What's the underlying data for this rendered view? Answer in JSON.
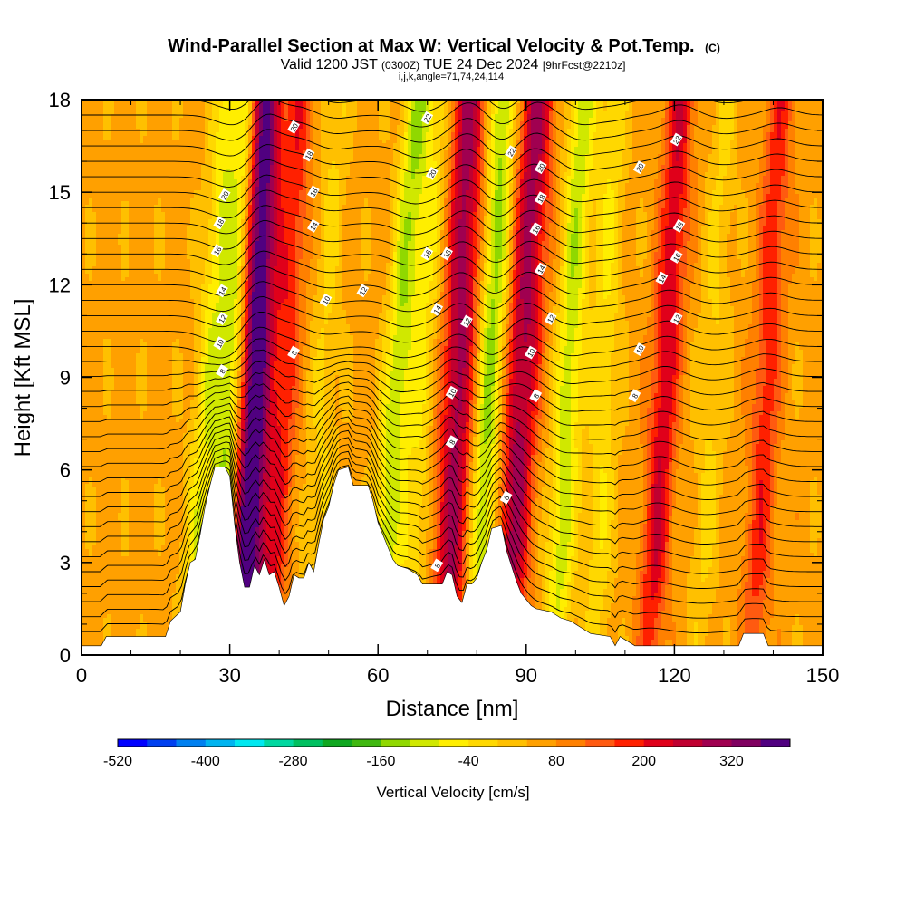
{
  "chart_data": {
    "type": "heatmap",
    "title": "Wind-Parallel Section at Max W: Vertical Velocity & Pot.Temp.",
    "title_tag": "(C)",
    "subtitle_parts": [
      "Valid 1200 JST",
      "(0300Z)",
      "TUE 24 Dec 2024",
      "[9hrFcst@2210z]"
    ],
    "subtitle2": "i,j,k,angle=71,74,24,114",
    "xlabel": "Distance [nm]",
    "ylabel": "Height [Kft MSL]",
    "xlim": [
      0,
      150
    ],
    "ylim": [
      0,
      18
    ],
    "x_ticks": [
      "0",
      "30",
      "60",
      "90",
      "120",
      "150"
    ],
    "y_ticks": [
      "0",
      "3",
      "6",
      "9",
      "12",
      "15",
      "18"
    ],
    "colorbar": {
      "label": "Vertical Velocity [cm/s]",
      "tick_labels": [
        "-520",
        "-400",
        "-280",
        "-160",
        "-40",
        "80",
        "200",
        "320"
      ],
      "colors": [
        "#0000ff",
        "#0040f0",
        "#0080f0",
        "#00b4f0",
        "#00e8f0",
        "#00d8a0",
        "#00c060",
        "#10a820",
        "#40b810",
        "#90d800",
        "#d0e800",
        "#ffee00",
        "#ffd800",
        "#ffc000",
        "#ffa000",
        "#ff8000",
        "#ff5a10",
        "#ff2000",
        "#e0001a",
        "#c00030",
        "#a00050",
        "#800060",
        "#500080"
      ]
    },
    "terrain_kft": [
      [
        0,
        0.3
      ],
      [
        4,
        0.3
      ],
      [
        5,
        0.6
      ],
      [
        12,
        0.6
      ],
      [
        15,
        0.6
      ],
      [
        17,
        0.6
      ],
      [
        18,
        1.1
      ],
      [
        20,
        1.4
      ],
      [
        21,
        2.3
      ],
      [
        22,
        3.0
      ],
      [
        23,
        3.1
      ],
      [
        24,
        3.9
      ],
      [
        25,
        4.8
      ],
      [
        26,
        5.5
      ],
      [
        27,
        6.1
      ],
      [
        29,
        6.1
      ],
      [
        30,
        5.8
      ],
      [
        31,
        4.2
      ],
      [
        32,
        3.0
      ],
      [
        33,
        2.2
      ],
      [
        34,
        2.2
      ],
      [
        35,
        2.9
      ],
      [
        36,
        2.6
      ],
      [
        37,
        3.1
      ],
      [
        38,
        2.6
      ],
      [
        39,
        2.7
      ],
      [
        40,
        2.2
      ],
      [
        41,
        1.6
      ],
      [
        42,
        1.9
      ],
      [
        43,
        2.6
      ],
      [
        44,
        2.5
      ],
      [
        45,
        2.5
      ],
      [
        46,
        3.0
      ],
      [
        47,
        2.7
      ],
      [
        48,
        3.6
      ],
      [
        49,
        4.4
      ],
      [
        50,
        4.8
      ],
      [
        51,
        5.5
      ],
      [
        52,
        6.0
      ],
      [
        54,
        6.1
      ],
      [
        55,
        5.5
      ],
      [
        58,
        5.5
      ],
      [
        59,
        5.0
      ],
      [
        60,
        4.3
      ],
      [
        62,
        3.5
      ],
      [
        63,
        3.1
      ],
      [
        64,
        2.9
      ],
      [
        66,
        2.8
      ],
      [
        68,
        2.6
      ],
      [
        69,
        2.3
      ],
      [
        71,
        2.3
      ],
      [
        73,
        2.3
      ],
      [
        74,
        2.7
      ],
      [
        75,
        2.6
      ],
      [
        76,
        1.9
      ],
      [
        77,
        1.7
      ],
      [
        78,
        2.3
      ],
      [
        79,
        2.3
      ],
      [
        80,
        2.5
      ],
      [
        81,
        3.0
      ],
      [
        82,
        3.4
      ],
      [
        83,
        4.1
      ],
      [
        85,
        4.2
      ],
      [
        86,
        3.4
      ],
      [
        87,
        2.9
      ],
      [
        88,
        2.4
      ],
      [
        89,
        2.0
      ],
      [
        90,
        1.8
      ],
      [
        91,
        1.6
      ],
      [
        92,
        1.5
      ],
      [
        95,
        1.4
      ],
      [
        97,
        1.2
      ],
      [
        99,
        1.1
      ],
      [
        101,
        0.9
      ],
      [
        103,
        0.7
      ],
      [
        107,
        0.6
      ],
      [
        108,
        0.3
      ],
      [
        109,
        0.6
      ],
      [
        112,
        0.3
      ],
      [
        133,
        0.3
      ],
      [
        134,
        0.7
      ],
      [
        138,
        0.7
      ],
      [
        139,
        0.3
      ],
      [
        150,
        0.3
      ]
    ],
    "vertical_velocity_bands": [
      {
        "x_nm": 22,
        "tilt_nm_per_kft": 0.42,
        "w_cms": -120
      },
      {
        "x_nm": 27,
        "tilt_nm_per_kft": 0.4,
        "w_cms": -200
      },
      {
        "x_nm": 33,
        "tilt_nm_per_kft": 0.22,
        "w_cms": 380
      },
      {
        "x_nm": 38,
        "tilt_nm_per_kft": 0.35,
        "w_cms": 130
      },
      {
        "x_nm": 47,
        "tilt_nm_per_kft": 0.25,
        "w_cms": -60
      },
      {
        "x_nm": 60,
        "tilt_nm_per_kft": 0.45,
        "w_cms": -170
      },
      {
        "x_nm": 66,
        "tilt_nm_per_kft": 0.35,
        "w_cms": -90
      },
      {
        "x_nm": 74,
        "tilt_nm_per_kft": 0.25,
        "w_cms": 240
      },
      {
        "x_nm": 80,
        "tilt_nm_per_kft": 0.3,
        "w_cms": -190
      },
      {
        "x_nm": 86,
        "tilt_nm_per_kft": 0.35,
        "w_cms": 240
      },
      {
        "x_nm": 96,
        "tilt_nm_per_kft": 0.3,
        "w_cms": -160
      },
      {
        "x_nm": 104,
        "tilt_nm_per_kft": 0.2,
        "w_cms": -90
      },
      {
        "x_nm": 115,
        "tilt_nm_per_kft": 0.35,
        "w_cms": 180
      },
      {
        "x_nm": 125,
        "tilt_nm_per_kft": 0.3,
        "w_cms": -60
      },
      {
        "x_nm": 136,
        "tilt_nm_per_kft": 0.3,
        "w_cms": 130
      }
    ],
    "theta_contour_labels": [
      {
        "text": "20",
        "x_nm": 43,
        "y_kft": 17.1
      },
      {
        "text": "18",
        "x_nm": 46,
        "y_kft": 16.2
      },
      {
        "text": "16",
        "x_nm": 47,
        "y_kft": 15.0
      },
      {
        "text": "14",
        "x_nm": 47,
        "y_kft": 13.9
      },
      {
        "text": "20",
        "x_nm": 29,
        "y_kft": 14.9
      },
      {
        "text": "18",
        "x_nm": 28,
        "y_kft": 14.0
      },
      {
        "text": "16",
        "x_nm": 27.5,
        "y_kft": 13.1
      },
      {
        "text": "14",
        "x_nm": 28.5,
        "y_kft": 11.8
      },
      {
        "text": "12",
        "x_nm": 28.5,
        "y_kft": 10.9
      },
      {
        "text": "10",
        "x_nm": 28,
        "y_kft": 10.1
      },
      {
        "text": "8",
        "x_nm": 28.5,
        "y_kft": 9.2
      },
      {
        "text": "8",
        "x_nm": 43,
        "y_kft": 9.8
      },
      {
        "text": "10",
        "x_nm": 49.5,
        "y_kft": 11.5
      },
      {
        "text": "12",
        "x_nm": 57,
        "y_kft": 11.8
      },
      {
        "text": "22",
        "x_nm": 70,
        "y_kft": 17.4
      },
      {
        "text": "20",
        "x_nm": 71,
        "y_kft": 15.6
      },
      {
        "text": "16",
        "x_nm": 70,
        "y_kft": 13.0
      },
      {
        "text": "18",
        "x_nm": 74,
        "y_kft": 13.0
      },
      {
        "text": "14",
        "x_nm": 72,
        "y_kft": 11.2
      },
      {
        "text": "12",
        "x_nm": 78,
        "y_kft": 10.8
      },
      {
        "text": "10",
        "x_nm": 75,
        "y_kft": 8.5
      },
      {
        "text": "8",
        "x_nm": 75,
        "y_kft": 6.9
      },
      {
        "text": "6",
        "x_nm": 86,
        "y_kft": 5.1
      },
      {
        "text": "8",
        "x_nm": 72,
        "y_kft": 2.9
      },
      {
        "text": "22",
        "x_nm": 87,
        "y_kft": 16.3
      },
      {
        "text": "20",
        "x_nm": 93,
        "y_kft": 15.8
      },
      {
        "text": "18",
        "x_nm": 93,
        "y_kft": 14.8
      },
      {
        "text": "16",
        "x_nm": 92,
        "y_kft": 13.8
      },
      {
        "text": "14",
        "x_nm": 93,
        "y_kft": 12.5
      },
      {
        "text": "12",
        "x_nm": 95,
        "y_kft": 10.9
      },
      {
        "text": "10",
        "x_nm": 91,
        "y_kft": 9.8
      },
      {
        "text": "8",
        "x_nm": 92,
        "y_kft": 8.4
      },
      {
        "text": "22",
        "x_nm": 120.5,
        "y_kft": 16.7
      },
      {
        "text": "20",
        "x_nm": 113,
        "y_kft": 15.8
      },
      {
        "text": "18",
        "x_nm": 121,
        "y_kft": 13.9
      },
      {
        "text": "16",
        "x_nm": 120.5,
        "y_kft": 12.9
      },
      {
        "text": "14",
        "x_nm": 117.5,
        "y_kft": 12.2
      },
      {
        "text": "12",
        "x_nm": 120.5,
        "y_kft": 10.9
      },
      {
        "text": "10",
        "x_nm": 113,
        "y_kft": 9.9
      },
      {
        "text": "8",
        "x_nm": 112,
        "y_kft": 8.4
      }
    ]
  }
}
